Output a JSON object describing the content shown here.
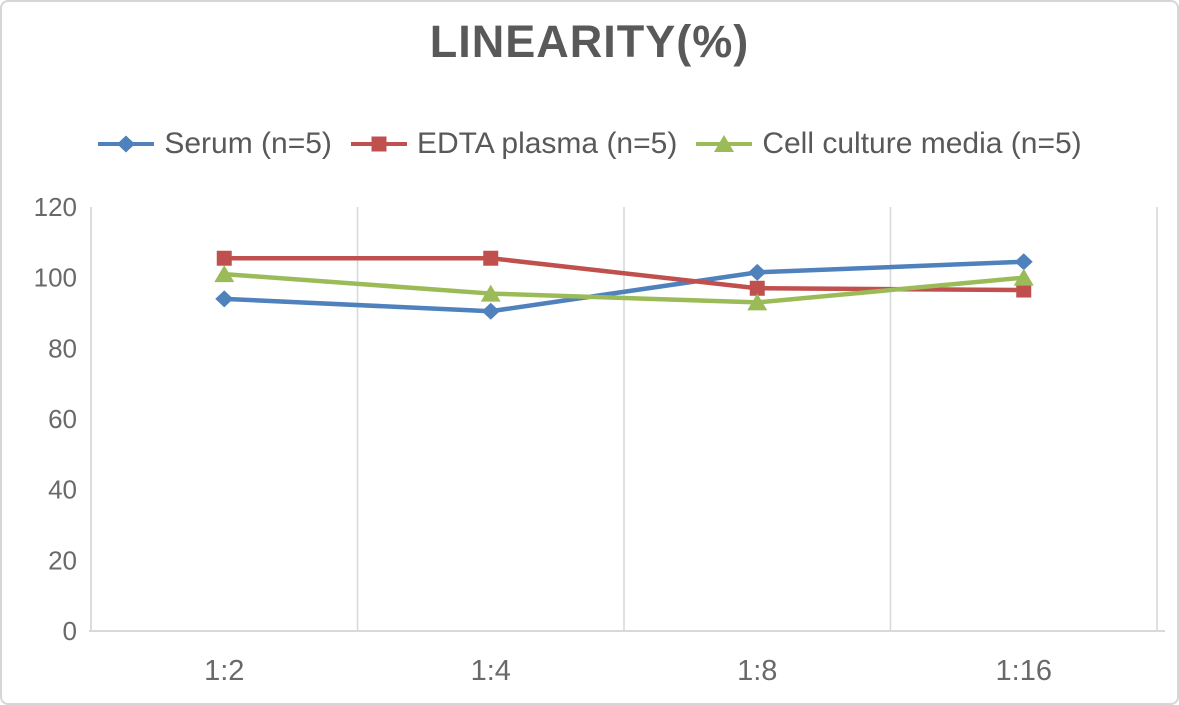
{
  "chart_data": {
    "type": "line",
    "title": "LINEARITY(%)",
    "categories": [
      "1:2",
      "1:4",
      "1:8",
      "1:16"
    ],
    "series": [
      {
        "name": "Serum (n=5)",
        "marker": "diamond",
        "color": "#4F81BD",
        "values": [
          94,
          90.5,
          101.5,
          104.5
        ]
      },
      {
        "name": "EDTA plasma (n=5)",
        "marker": "square",
        "color": "#C0504D",
        "values": [
          105.5,
          105.5,
          97,
          96.5
        ]
      },
      {
        "name": "Cell culture media (n=5)",
        "marker": "triangle",
        "color": "#9BBB59",
        "values": [
          101,
          95.5,
          93,
          100
        ]
      }
    ],
    "xlabel": "",
    "ylabel": "",
    "ylim": [
      0,
      120
    ],
    "yticks": [
      0,
      20,
      40,
      60,
      80,
      100,
      120
    ],
    "grid": "vertical-only",
    "legend_position": "top"
  },
  "style": {
    "title_color": "#595959",
    "legend_text_color": "#595959",
    "tick_label_color": "#696969",
    "grid_color": "#D9D9D9",
    "axis_color": "#D9D9D9",
    "background": "#FFFFFF",
    "border_color": "#D6D6D6"
  }
}
